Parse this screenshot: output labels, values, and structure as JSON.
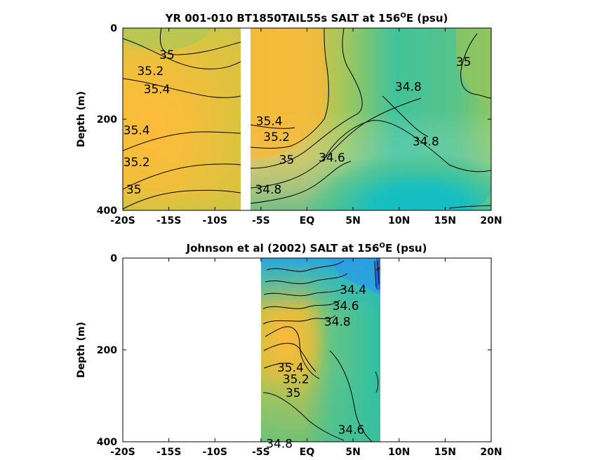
{
  "chart_data": [
    {
      "type": "heatmap",
      "title": "YR 001-010 BT1850TAIL55s SALT at 156",
      "title_sup": "O",
      "title_suffix": "E (psu)",
      "ylabel": "Depth (m)",
      "xlim": [
        -20,
        20
      ],
      "ylim": [
        0,
        400
      ],
      "y_reversed": true,
      "x_ticks": [
        -20,
        -15,
        -10,
        -5,
        0,
        5,
        10,
        15,
        20
      ],
      "x_tick_labels": [
        "-20S",
        "-15S",
        "-10S",
        "-5S",
        "EQ",
        "5N",
        "10N",
        "15N",
        "20N"
      ],
      "y_ticks": [
        0,
        200,
        400
      ],
      "y_tick_labels": [
        "0",
        "200",
        "400"
      ],
      "data_gap_x": [
        -7.5,
        -6.8
      ],
      "contour_levels": [
        34.6,
        34.8,
        35.0,
        35.2,
        35.4
      ],
      "contour_labels": [
        {
          "text": "35",
          "x": -15.2,
          "y": 60
        },
        {
          "text": "35.2",
          "x": -17.0,
          "y": 95
        },
        {
          "text": "35.4",
          "x": -16.3,
          "y": 135
        },
        {
          "text": "35.4",
          "x": -18.5,
          "y": 225
        },
        {
          "text": "35.2",
          "x": -18.5,
          "y": 295
        },
        {
          "text": "35",
          "x": -18.8,
          "y": 355
        },
        {
          "text": "35.4",
          "x": -4.1,
          "y": 205
        },
        {
          "text": "35.2",
          "x": -3.3,
          "y": 240
        },
        {
          "text": "35",
          "x": -2.2,
          "y": 290
        },
        {
          "text": "34.8",
          "x": -4.2,
          "y": 355
        },
        {
          "text": "34.6",
          "x": 2.7,
          "y": 285
        },
        {
          "text": "34.8",
          "x": 11.0,
          "y": 130
        },
        {
          "text": "34.8",
          "x": 12.9,
          "y": 250
        },
        {
          "text": "35",
          "x": 17.0,
          "y": 75
        }
      ]
    },
    {
      "type": "heatmap",
      "title": "Johnson et al (2002) SALT at 156",
      "title_sup": "O",
      "title_suffix": "E (psu)",
      "ylabel": "Depth (m)",
      "xlim": [
        -20,
        20
      ],
      "ylim": [
        0,
        400
      ],
      "y_reversed": true,
      "x_ticks": [
        -20,
        -15,
        -10,
        -5,
        0,
        5,
        10,
        15,
        20
      ],
      "x_tick_labels": [
        "-20S",
        "-15S",
        "-10S",
        "-5S",
        "EQ",
        "5N",
        "10N",
        "15N",
        "20N"
      ],
      "y_ticks": [
        0,
        200,
        400
      ],
      "y_tick_labels": [
        "0",
        "200",
        "400"
      ],
      "data_extent_x": [
        -5,
        8
      ],
      "contour_levels": [
        34.0,
        34.2,
        34.4,
        34.6,
        34.8,
        35.0,
        35.2,
        35.4
      ],
      "contour_labels": [
        {
          "text": "34.4",
          "x": 5.0,
          "y": 70
        },
        {
          "text": "34.6",
          "x": 4.2,
          "y": 105
        },
        {
          "text": "34.8",
          "x": 3.3,
          "y": 140
        },
        {
          "text": "35.4",
          "x": -1.8,
          "y": 240
        },
        {
          "text": "35.2",
          "x": -1.2,
          "y": 265
        },
        {
          "text": "35",
          "x": -1.5,
          "y": 295
        },
        {
          "text": "34.8",
          "x": -3.0,
          "y": 405
        },
        {
          "text": "34.6",
          "x": 4.8,
          "y": 375
        }
      ]
    }
  ]
}
